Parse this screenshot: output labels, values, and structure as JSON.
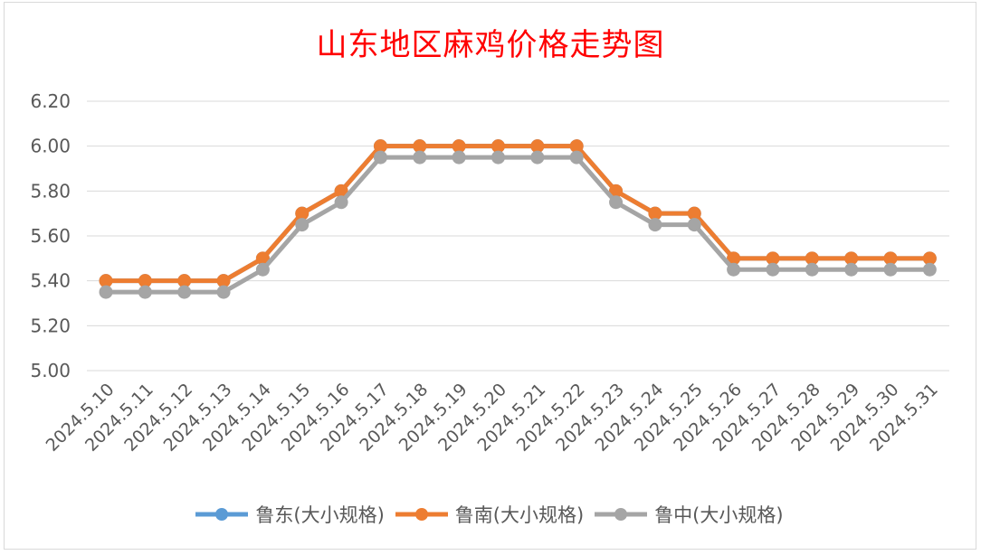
{
  "chart_data": {
    "type": "line",
    "title": "山东地区麻鸡价格走势图",
    "categories": [
      "2024.5.10",
      "2024.5.11",
      "2024.5.12",
      "2024.5.13",
      "2024.5.14",
      "2024.5.15",
      "2024.5.16",
      "2024.5.17",
      "2024.5.18",
      "2024.5.19",
      "2024.5.20",
      "2024.5.21",
      "2024.5.22",
      "2024.5.23",
      "2024.5.24",
      "2024.5.25",
      "2024.5.26",
      "2024.5.27",
      "2024.5.28",
      "2024.5.29",
      "2024.5.30",
      "2024.5.31"
    ],
    "ylim": [
      5.0,
      6.2
    ],
    "yticks": [
      "6.20",
      "6.00",
      "5.80",
      "5.60",
      "5.40",
      "5.20",
      "5.00"
    ],
    "grid": true,
    "legend_position": "bottom",
    "series": [
      {
        "name": "鲁东(大小规格)",
        "color": "#5b9bd5",
        "values": [
          5.4,
          5.4,
          5.4,
          5.4,
          5.5,
          5.7,
          5.8,
          6.0,
          6.0,
          6.0,
          6.0,
          6.0,
          6.0,
          5.8,
          5.7,
          5.7,
          5.5,
          5.5,
          5.5,
          5.5,
          5.5,
          5.5
        ]
      },
      {
        "name": "鲁南(大小规格)",
        "color": "#ed7d31",
        "values": [
          5.4,
          5.4,
          5.4,
          5.4,
          5.5,
          5.7,
          5.8,
          6.0,
          6.0,
          6.0,
          6.0,
          6.0,
          6.0,
          5.8,
          5.7,
          5.7,
          5.5,
          5.5,
          5.5,
          5.5,
          5.5,
          5.5
        ]
      },
      {
        "name": "鲁中(大小规格)",
        "color": "#a5a5a5",
        "values": [
          5.35,
          5.35,
          5.35,
          5.35,
          5.45,
          5.65,
          5.75,
          5.95,
          5.95,
          5.95,
          5.95,
          5.95,
          5.95,
          5.75,
          5.65,
          5.65,
          5.45,
          5.45,
          5.45,
          5.45,
          5.45,
          5.45
        ]
      }
    ]
  }
}
